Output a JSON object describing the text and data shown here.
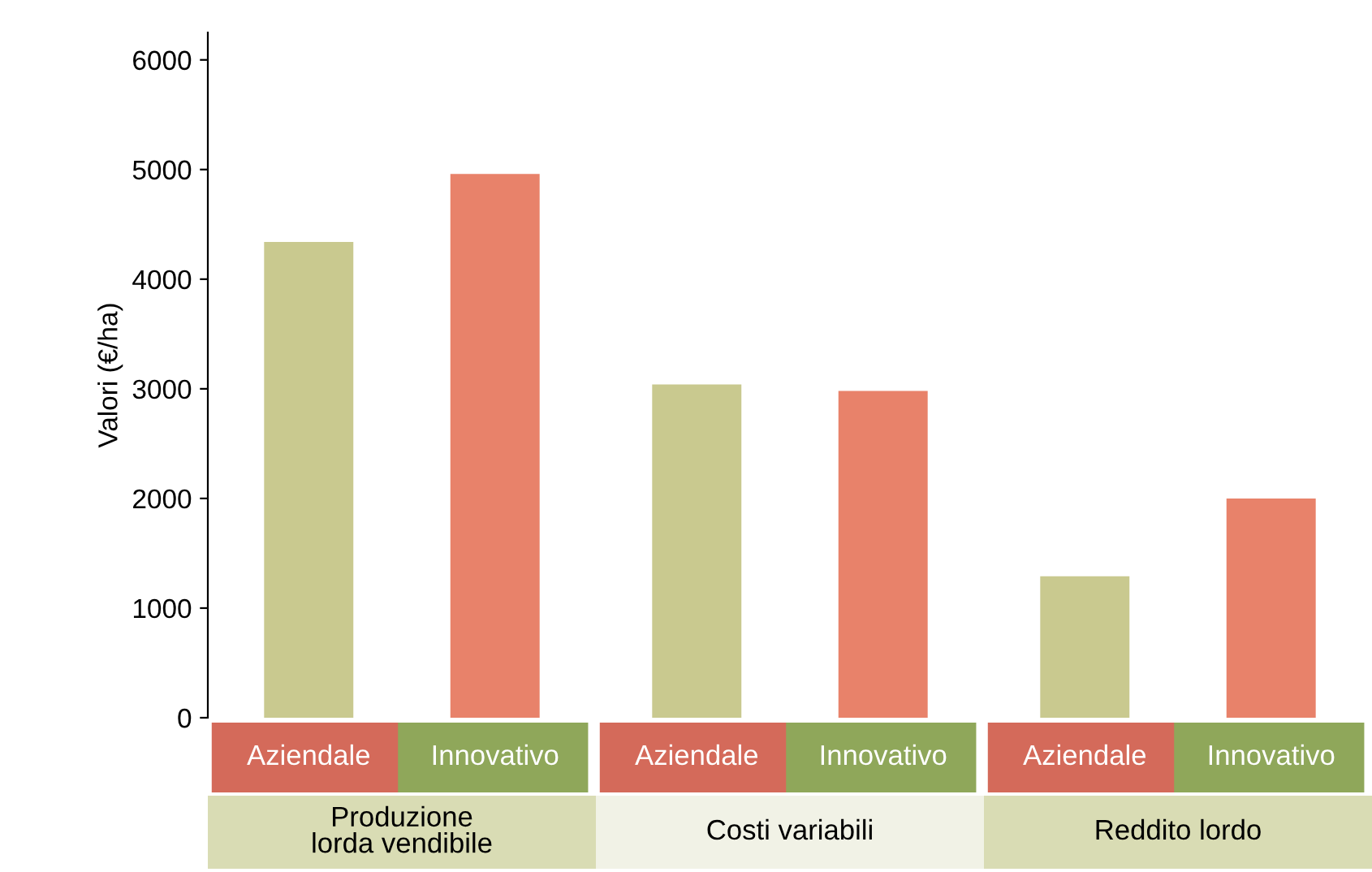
{
  "chart_data": {
    "type": "bar",
    "ylabel": "Valori (€/ha)",
    "categories": [
      "Produzione\nlorda vendibile",
      "Costi variabili",
      "Reddito lordo"
    ],
    "series": [
      {
        "name": "Aziendale",
        "color": "#c9c98f",
        "values": [
          4340,
          3040,
          1290
        ]
      },
      {
        "name": "Innovativo",
        "color": "#e8826a",
        "values": [
          4960,
          2980,
          2000
        ]
      }
    ],
    "ylim": [
      0,
      6250
    ],
    "yticks": [
      0,
      1000,
      2000,
      3000,
      4000,
      5000,
      6000
    ]
  }
}
